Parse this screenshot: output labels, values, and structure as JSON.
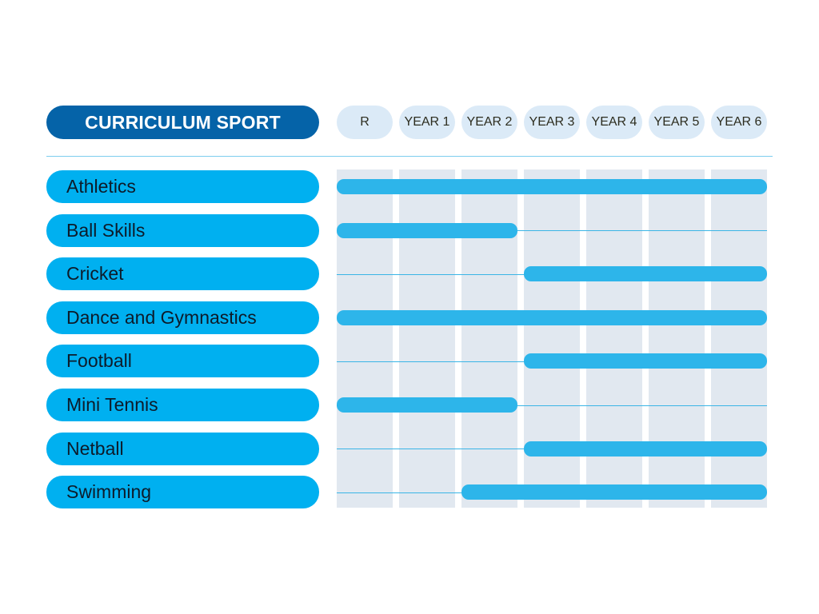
{
  "title": "CURRICULUM SPORT",
  "years": [
    "R",
    "YEAR 1",
    "YEAR 2",
    "YEAR 3",
    "YEAR 4",
    "YEAR 5",
    "YEAR 6"
  ],
  "colors": {
    "title_bg": "#0563a8",
    "sport_bg": "#00b0f0",
    "bar": "#2db5ea",
    "year_pill_bg": "#dbeaf7",
    "column_bg": "#e1e8f0"
  },
  "sports": [
    {
      "name": "Athletics",
      "from": "R",
      "to": "YEAR 6"
    },
    {
      "name": "Ball Skills",
      "from": "R",
      "to": "YEAR 2"
    },
    {
      "name": "Cricket",
      "from": "YEAR 3",
      "to": "YEAR 6"
    },
    {
      "name": "Dance and Gymnastics",
      "from": "R",
      "to": "YEAR 6"
    },
    {
      "name": "Football",
      "from": "YEAR 3",
      "to": "YEAR 6"
    },
    {
      "name": "Mini Tennis",
      "from": "R",
      "to": "YEAR 2"
    },
    {
      "name": "Netball",
      "from": "YEAR 3",
      "to": "YEAR 6"
    },
    {
      "name": "Swimming",
      "from": "YEAR 2",
      "to": "YEAR 6"
    }
  ]
}
